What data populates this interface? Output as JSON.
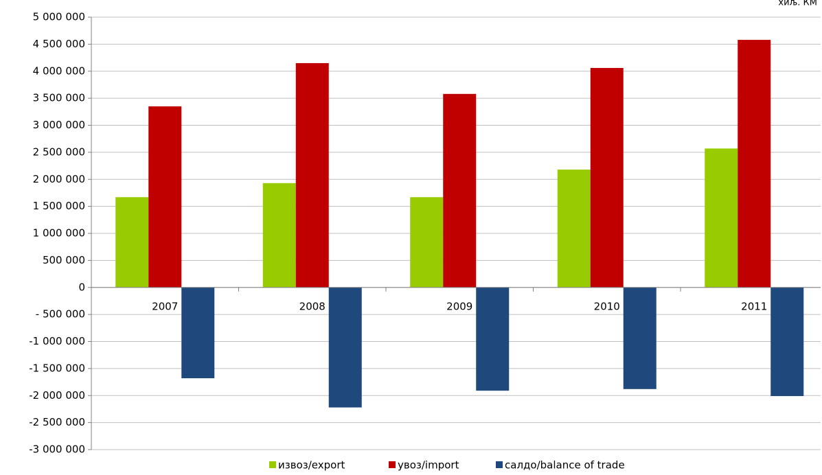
{
  "chart_data": {
    "type": "bar",
    "unit_label": "хиљ. КМ",
    "categories": [
      "2007",
      "2008",
      "2009",
      "2010",
      "2011"
    ],
    "series": [
      {
        "name": "извоз/export",
        "color": "#99cc00",
        "values": [
          1670000,
          1930000,
          1670000,
          2180000,
          2570000
        ]
      },
      {
        "name": "увоз/import",
        "color": "#c00000",
        "values": [
          3350000,
          4150000,
          3580000,
          4060000,
          4580000
        ]
      },
      {
        "name": "салдо/balance of trade",
        "color": "#1f497d",
        "values": [
          -1680000,
          -2220000,
          -1910000,
          -1880000,
          -2010000
        ]
      }
    ],
    "ylim": [
      -3000000,
      5000000
    ],
    "yticks": [
      {
        "value": -3000000,
        "label": "-3 000 000"
      },
      {
        "value": -2500000,
        "label": "-2 500 000"
      },
      {
        "value": -2000000,
        "label": "-2 000 000"
      },
      {
        "value": -1500000,
        "label": "-1 500 000"
      },
      {
        "value": -1000000,
        "label": "-1 000 000"
      },
      {
        "value": -500000,
        "label": "- 500 000"
      },
      0,
      {
        "value": 500000,
        "label": "500 000"
      },
      {
        "value": 1000000,
        "label": "1 000 000"
      },
      {
        "value": 1500000,
        "label": "1 500 000"
      },
      {
        "value": 2000000,
        "label": "2 000 000"
      },
      {
        "value": 2500000,
        "label": "2 500 000"
      },
      {
        "value": 3000000,
        "label": "3 000 000"
      },
      {
        "value": 3500000,
        "label": "3 500 000"
      },
      {
        "value": 4000000,
        "label": "4 000 000"
      },
      {
        "value": 4500000,
        "label": "4 500 000"
      },
      {
        "value": 5000000,
        "label": "5 000 000"
      }
    ],
    "grid": true
  }
}
